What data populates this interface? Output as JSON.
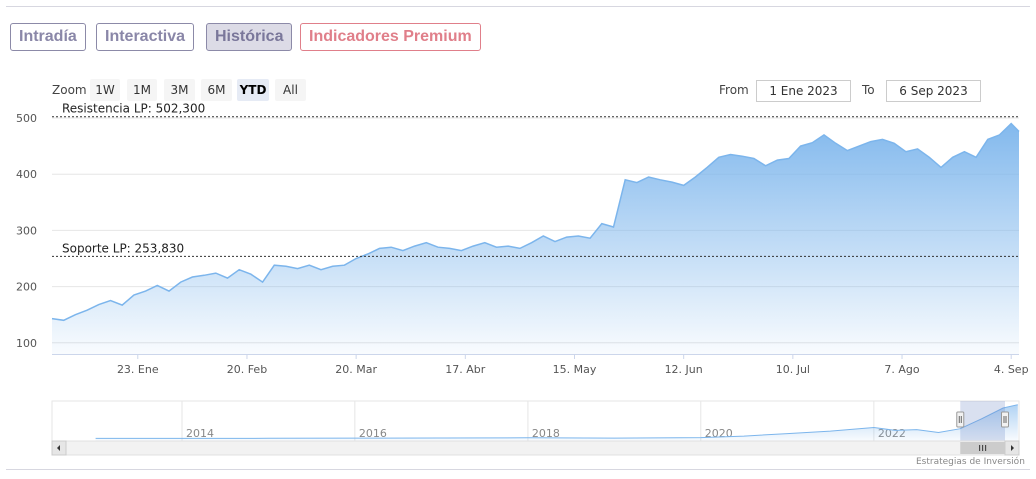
{
  "tabs": [
    {
      "label": "Intradía"
    },
    {
      "label": "Interactiva"
    },
    {
      "label": "Histórica"
    },
    {
      "label": "Indicadores Premium"
    }
  ],
  "zoom": {
    "label": "Zoom",
    "buttons": [
      "1W",
      "1M",
      "3M",
      "6M",
      "YTD",
      "All"
    ],
    "selected": "YTD"
  },
  "range": {
    "from_label": "From",
    "from_value": "1 Ene 2023",
    "to_label": "To",
    "to_value": "6 Sep 2023"
  },
  "credit": "Estrategias de Inversión",
  "colors": {
    "line": "#7cb5ec",
    "fill": "#7cb5ec",
    "plotline": "#333333",
    "accent": "#8a87a8",
    "premium": "#e07f8a"
  },
  "chart_data": [
    {
      "type": "area",
      "x_range": [
        "2023-01-01",
        "2023-09-06"
      ],
      "ylim": [
        80,
        500
      ],
      "y_ticks": [
        100,
        200,
        300,
        400,
        500
      ],
      "x_ticks": [
        {
          "label": "23. Ene",
          "date": "2023-01-23"
        },
        {
          "label": "20. Feb",
          "date": "2023-02-20"
        },
        {
          "label": "20. Mar",
          "date": "2023-03-20"
        },
        {
          "label": "17. Abr",
          "date": "2023-04-17"
        },
        {
          "label": "15. May",
          "date": "2023-05-15"
        },
        {
          "label": "12. Jun",
          "date": "2023-06-12"
        },
        {
          "label": "10. Jul",
          "date": "2023-07-10"
        },
        {
          "label": "7. Ago",
          "date": "2023-08-07"
        },
        {
          "label": "4. Sep",
          "date": "2023-09-04"
        }
      ],
      "plot_lines": [
        {
          "label": "Resistencia LP: 502,300",
          "value": 502.3
        },
        {
          "label": "Soporte LP: 253,830",
          "value": 253.83
        }
      ],
      "series": [
        {
          "x": [
            "2023-01-01",
            "2023-01-04",
            "2023-01-07",
            "2023-01-10",
            "2023-01-13",
            "2023-01-16",
            "2023-01-19",
            "2023-01-22",
            "2023-01-25",
            "2023-01-28",
            "2023-01-31",
            "2023-02-03",
            "2023-02-06",
            "2023-02-09",
            "2023-02-12",
            "2023-02-15",
            "2023-02-18",
            "2023-02-21",
            "2023-02-24",
            "2023-02-27",
            "2023-03-02",
            "2023-03-05",
            "2023-03-08",
            "2023-03-11",
            "2023-03-14",
            "2023-03-17",
            "2023-03-20",
            "2023-03-23",
            "2023-03-26",
            "2023-03-29",
            "2023-04-01",
            "2023-04-04",
            "2023-04-07",
            "2023-04-10",
            "2023-04-13",
            "2023-04-16",
            "2023-04-19",
            "2023-04-22",
            "2023-04-25",
            "2023-04-28",
            "2023-05-01",
            "2023-05-04",
            "2023-05-07",
            "2023-05-10",
            "2023-05-13",
            "2023-05-16",
            "2023-05-19",
            "2023-05-22",
            "2023-05-25",
            "2023-05-28",
            "2023-05-31",
            "2023-06-03",
            "2023-06-06",
            "2023-06-09",
            "2023-06-12",
            "2023-06-15",
            "2023-06-18",
            "2023-06-21",
            "2023-06-24",
            "2023-06-27",
            "2023-06-30",
            "2023-07-03",
            "2023-07-06",
            "2023-07-09",
            "2023-07-12",
            "2023-07-15",
            "2023-07-18",
            "2023-07-21",
            "2023-07-24",
            "2023-07-27",
            "2023-07-30",
            "2023-08-02",
            "2023-08-05",
            "2023-08-08",
            "2023-08-11",
            "2023-08-14",
            "2023-08-17",
            "2023-08-20",
            "2023-08-23",
            "2023-08-26",
            "2023-08-29",
            "2023-09-01",
            "2023-09-04",
            "2023-09-06"
          ],
          "values": [
            143,
            140,
            150,
            158,
            168,
            175,
            167,
            185,
            192,
            202,
            192,
            208,
            217,
            220,
            224,
            215,
            230,
            222,
            208,
            238,
            236,
            232,
            238,
            230,
            236,
            238,
            250,
            258,
            268,
            270,
            264,
            272,
            278,
            270,
            268,
            264,
            272,
            278,
            270,
            272,
            268,
            278,
            290,
            280,
            288,
            290,
            286,
            312,
            306,
            390,
            385,
            395,
            390,
            386,
            380,
            395,
            412,
            430,
            435,
            432,
            428,
            415,
            425,
            428,
            450,
            456,
            470,
            455,
            442,
            450,
            458,
            462,
            455,
            440,
            445,
            430,
            412,
            430,
            440,
            430,
            462,
            470,
            490,
            476
          ]
        }
      ]
    },
    {
      "type": "area",
      "role": "navigator",
      "x_ticks": [
        "2014",
        "2016",
        "2018",
        "2020",
        "2022"
      ],
      "x": [
        "2013-01",
        "2014-01",
        "2015-01",
        "2016-01",
        "2017-01",
        "2018-01",
        "2019-01",
        "2020-01",
        "2020-07",
        "2021-01",
        "2021-07",
        "2022-01",
        "2022-04",
        "2022-07",
        "2022-10",
        "2023-01",
        "2023-04",
        "2023-07",
        "2023-09"
      ],
      "values": [
        8,
        9,
        10,
        12,
        14,
        16,
        12,
        20,
        40,
        75,
        110,
        160,
        120,
        130,
        90,
        143,
        280,
        430,
        476
      ]
    }
  ]
}
